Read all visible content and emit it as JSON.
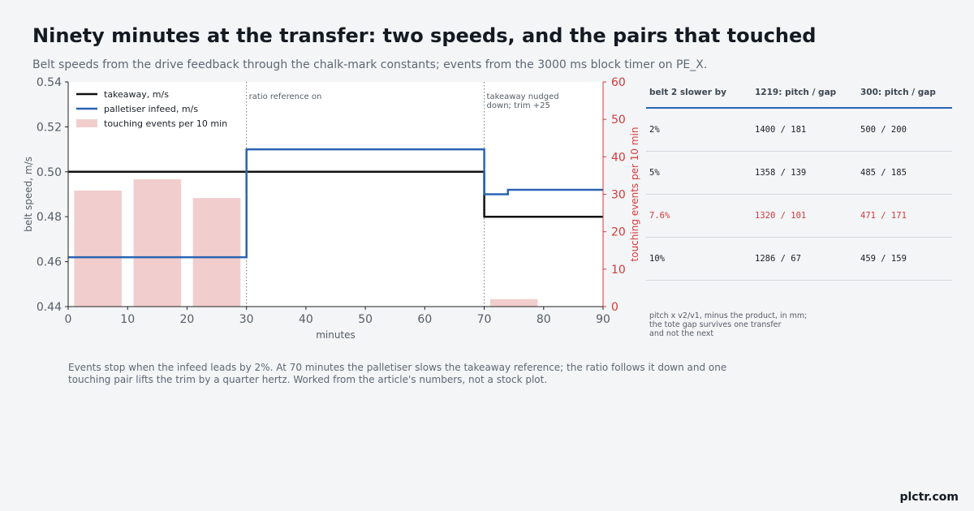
{
  "header": {
    "title": "Ninety minutes at the transfer: two speeds, and the pairs that touched",
    "subtitle": "Belt speeds from the drive feedback through the chalk-mark constants; events from the 3000 ms block timer on PE_X."
  },
  "chart_data": {
    "type": "line",
    "xlabel": "minutes",
    "ylabel": "belt speed, m/s",
    "y2label": "touching events per 10 min",
    "xlim": [
      0,
      90
    ],
    "ylim": [
      0.44,
      0.54
    ],
    "y2lim": [
      0,
      60
    ],
    "x_ticks": [
      "0",
      "10",
      "20",
      "30",
      "40",
      "50",
      "60",
      "70",
      "80",
      "90"
    ],
    "y_ticks": [
      "0.44",
      "0.46",
      "0.48",
      "0.50",
      "0.52",
      "0.54"
    ],
    "y2_ticks": [
      "0",
      "10",
      "20",
      "30",
      "40",
      "50",
      "60"
    ],
    "legend_position": "top-left",
    "grid": false,
    "series": [
      {
        "name": "takeaway, m/s",
        "kind": "step-line",
        "color": "#111111",
        "axis": "left",
        "points": [
          [
            0,
            0.5
          ],
          [
            70,
            0.5
          ],
          [
            70,
            0.48
          ],
          [
            90,
            0.48
          ]
        ]
      },
      {
        "name": "palletiser infeed, m/s",
        "kind": "step-line",
        "color": "#2a64b3",
        "axis": "left",
        "points": [
          [
            0,
            0.462
          ],
          [
            30,
            0.462
          ],
          [
            30,
            0.51
          ],
          [
            70,
            0.51
          ],
          [
            70,
            0.49
          ],
          [
            74,
            0.49
          ],
          [
            74,
            0.492
          ],
          [
            90,
            0.492
          ]
        ]
      },
      {
        "name": "touching events per 10 min",
        "kind": "bar",
        "color": "#f2cdcd",
        "axis": "right",
        "bars": [
          {
            "center": 5,
            "width": 8,
            "value": 31
          },
          {
            "center": 15,
            "width": 8,
            "value": 34
          },
          {
            "center": 25,
            "width": 8,
            "value": 29
          },
          {
            "center": 75,
            "width": 8,
            "value": 2
          }
        ]
      }
    ],
    "annotations": [
      {
        "x": 30,
        "lines": [
          "ratio reference on"
        ]
      },
      {
        "x": 70,
        "lines": [
          "takeaway nudged",
          "down; trim +25"
        ]
      }
    ]
  },
  "table": {
    "headers": [
      "belt 2 slower by",
      "1219: pitch / gap",
      "300: pitch / gap"
    ],
    "rows": [
      {
        "slower": "2%",
        "a": "1400 / 181",
        "b": "500 / 200",
        "highlight": false
      },
      {
        "slower": "5%",
        "a": "1358 / 139",
        "b": "485 / 185",
        "highlight": false
      },
      {
        "slower": "7.6%",
        "a": "1320 / 101",
        "b": "471 / 171",
        "highlight": true
      },
      {
        "slower": "10%",
        "a": "1286 / 67",
        "b": "459 / 159",
        "highlight": false
      }
    ],
    "note": [
      "pitch x v2/v1, minus the product, in mm;",
      "the tote gap survives one transfer",
      "and not the next"
    ],
    "highlight_color": "#d43a3a",
    "rule_color": "#2a64b3"
  },
  "caption": [
    "Events stop when the infeed leads by 2%. At 70 minutes the palletiser slows the takeaway reference; the ratio follows it down and one",
    "touching pair lifts the trim by a quarter hertz. Worked from the article's numbers, not a stock plot."
  ],
  "brand": "plctr.com"
}
